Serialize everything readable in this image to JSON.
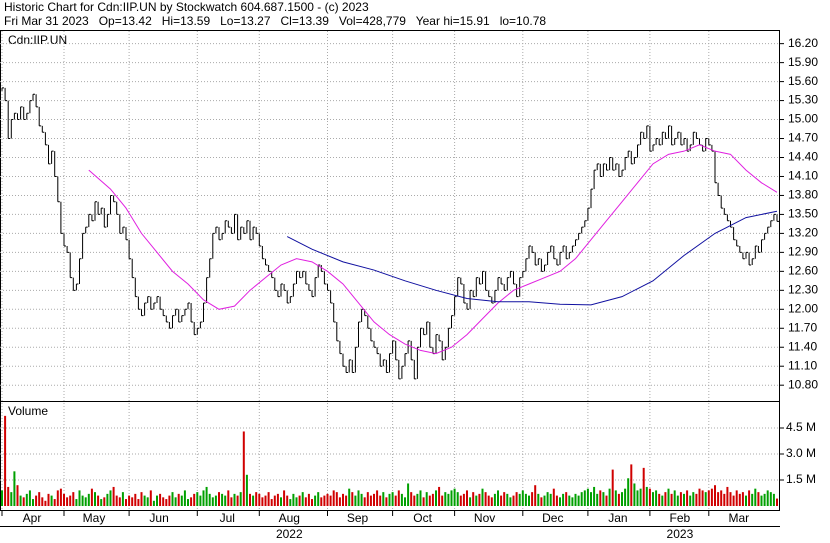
{
  "header": {
    "title": "Historic Chart for Cdn:IIP.UN by Stockwatch 604.687.1500 - (c) 2023",
    "summary": "Fri Mar 31 2023   Op=13.42   Hi=13.59   Lo=13.27   Cl=13.39   Vol=428,779   Year hi=15.91   lo=10.78"
  },
  "chart_data": [
    {
      "type": "ohlc",
      "label": "Cdn:IIP.UN",
      "close": [
        15.5,
        15.3,
        14.7,
        15.0,
        15.1,
        15.0,
        15.2,
        15.0,
        15.1,
        15.3,
        15.4,
        15.2,
        14.9,
        14.8,
        14.6,
        14.3,
        14.5,
        14.1,
        13.7,
        13.2,
        13.0,
        12.9,
        12.5,
        12.3,
        12.4,
        12.8,
        13.2,
        13.3,
        13.5,
        13.4,
        13.7,
        13.5,
        13.6,
        13.3,
        13.5,
        13.8,
        13.7,
        13.5,
        13.2,
        13.3,
        13.1,
        12.8,
        12.5,
        12.2,
        12.0,
        11.9,
        12.1,
        12.2,
        12.0,
        12.1,
        12.2,
        12.0,
        11.9,
        11.8,
        11.7,
        11.9,
        12.0,
        11.8,
        11.9,
        12.0,
        12.1,
        11.8,
        11.6,
        11.7,
        11.8,
        12.1,
        12.5,
        12.8,
        13.2,
        13.3,
        13.1,
        13.2,
        13.4,
        13.3,
        13.2,
        13.5,
        13.1,
        13.3,
        13.2,
        13.4,
        13.1,
        13.3,
        13.2,
        13.0,
        12.8,
        12.7,
        12.6,
        12.5,
        12.3,
        12.2,
        12.4,
        12.3,
        12.1,
        12.2,
        12.4,
        12.6,
        12.5,
        12.6,
        12.4,
        12.3,
        12.2,
        12.5,
        12.7,
        12.6,
        12.4,
        12.3,
        12.1,
        11.8,
        11.5,
        11.3,
        11.1,
        11.0,
        11.2,
        11.0,
        11.4,
        11.8,
        12.0,
        11.9,
        11.7,
        11.5,
        11.4,
        11.3,
        11.1,
        11.2,
        11.0,
        11.3,
        11.5,
        11.2,
        10.9,
        11.1,
        11.3,
        11.5,
        11.2,
        10.9,
        11.4,
        11.7,
        11.6,
        11.8,
        11.4,
        11.3,
        11.6,
        11.5,
        11.2,
        11.4,
        11.7,
        11.9,
        12.2,
        12.5,
        12.4,
        12.1,
        12.0,
        12.3,
        12.2,
        12.5,
        12.4,
        12.6,
        12.3,
        12.2,
        12.1,
        12.3,
        12.5,
        12.4,
        12.3,
        12.5,
        12.6,
        12.4,
        12.2,
        12.5,
        12.6,
        12.8,
        13.0,
        12.9,
        12.7,
        12.8,
        12.6,
        12.7,
        12.9,
        13.0,
        12.8,
        12.7,
        12.9,
        13.0,
        12.8,
        12.9,
        13.0,
        13.1,
        13.2,
        13.3,
        13.4,
        13.6,
        13.9,
        14.2,
        14.3,
        14.1,
        14.3,
        14.2,
        14.4,
        14.2,
        14.3,
        14.1,
        14.2,
        14.4,
        14.5,
        14.3,
        14.4,
        14.6,
        14.8,
        14.7,
        14.9,
        14.5,
        14.6,
        14.7,
        14.6,
        14.8,
        14.7,
        14.9,
        14.6,
        14.7,
        14.8,
        14.6,
        14.7,
        14.5,
        14.6,
        14.8,
        14.7,
        14.6,
        14.5,
        14.7,
        14.6,
        14.5,
        14.0,
        13.8,
        13.6,
        13.5,
        13.4,
        13.3,
        13.1,
        13.0,
        12.9,
        12.8,
        12.9,
        12.7,
        12.8,
        13.0,
        12.9,
        13.1,
        13.2,
        13.3,
        13.4,
        13.5,
        13.39
      ],
      "averages": [
        {
          "color": "#e020e0",
          "x": [
            28,
            35,
            40,
            45,
            50,
            55,
            60,
            65,
            70,
            75,
            80,
            85,
            90,
            95,
            100,
            105,
            110,
            115,
            120,
            125,
            130,
            135,
            140,
            145,
            150,
            155,
            160,
            165,
            170,
            175,
            180,
            185,
            190,
            195,
            200,
            205,
            210,
            215,
            220,
            225,
            230,
            235,
            240,
            245,
            250
          ],
          "values": [
            14.2,
            13.9,
            13.6,
            13.2,
            12.9,
            12.6,
            12.4,
            12.15,
            12.0,
            12.05,
            12.3,
            12.5,
            12.7,
            12.8,
            12.75,
            12.6,
            12.4,
            12.1,
            11.8,
            11.6,
            11.45,
            11.35,
            11.3,
            11.4,
            11.6,
            11.85,
            12.1,
            12.3,
            12.4,
            12.5,
            12.6,
            12.8,
            13.1,
            13.4,
            13.7,
            14.0,
            14.3,
            14.45,
            14.5,
            14.6,
            14.5,
            14.45,
            14.2,
            14.0,
            13.85
          ]
        },
        {
          "color": "#1010a0",
          "x": [
            92,
            100,
            110,
            120,
            130,
            140,
            150,
            160,
            170,
            180,
            190,
            200,
            210,
            220,
            230,
            240,
            250
          ],
          "values": [
            13.15,
            12.95,
            12.75,
            12.62,
            12.45,
            12.3,
            12.17,
            12.12,
            12.12,
            12.08,
            12.07,
            12.2,
            12.45,
            12.85,
            13.2,
            13.45,
            13.55
          ]
        }
      ],
      "ylim": [
        10.55,
        16.4
      ],
      "yticks": [
        {
          "value": 10.8,
          "label": "10.80"
        },
        {
          "value": 11.1,
          "label": "11.10"
        },
        {
          "value": 11.4,
          "label": "11.40"
        },
        {
          "value": 11.7,
          "label": "11.70"
        },
        {
          "value": 12.0,
          "label": "12.00"
        },
        {
          "value": 12.3,
          "label": "12.30"
        },
        {
          "value": 12.6,
          "label": "12.60"
        },
        {
          "value": 12.9,
          "label": "12.90"
        },
        {
          "value": 13.2,
          "label": "13.20"
        },
        {
          "value": 13.5,
          "label": "13.50"
        },
        {
          "value": 13.8,
          "label": "13.80"
        },
        {
          "value": 14.1,
          "label": "14.10"
        },
        {
          "value": 14.4,
          "label": "14.40"
        },
        {
          "value": 14.7,
          "label": "14.70"
        },
        {
          "value": 15.0,
          "label": "15.00"
        },
        {
          "value": 15.3,
          "label": "15.30"
        },
        {
          "value": 15.6,
          "label": "15.60"
        },
        {
          "value": 15.9,
          "label": "15.90"
        },
        {
          "value": 16.2,
          "label": "16.20"
        }
      ],
      "grid": true
    },
    {
      "type": "volume",
      "label": "Volume",
      "values": [
        0.9,
        5.2,
        1.1,
        0.8,
        2.0,
        1.2,
        0.6,
        0.5,
        0.7,
        0.9,
        0.4,
        0.6,
        0.8,
        0.5,
        0.3,
        0.7,
        0.6,
        0.4,
        0.9,
        1.0,
        0.7,
        0.5,
        0.6,
        0.8,
        0.4,
        0.9,
        0.6,
        0.5,
        0.7,
        1.0,
        0.8,
        0.6,
        0.4,
        0.5,
        0.7,
        0.9,
        1.1,
        0.6,
        0.5,
        0.8,
        0.4,
        0.6,
        0.5,
        0.7,
        0.4,
        0.8,
        0.6,
        0.5,
        0.9,
        0.3,
        0.6,
        0.7,
        0.5,
        0.4,
        0.6,
        0.8,
        0.5,
        0.7,
        0.6,
        0.9,
        0.4,
        0.5,
        0.7,
        0.8,
        0.6,
        0.9,
        1.1,
        0.7,
        0.5,
        0.6,
        0.8,
        0.7,
        0.6,
        0.9,
        0.5,
        0.7,
        0.6,
        0.8,
        4.3,
        1.8,
        0.7,
        0.6,
        0.8,
        0.7,
        0.5,
        0.6,
        0.8,
        0.4,
        0.6,
        0.7,
        0.5,
        0.9,
        0.6,
        0.4,
        0.7,
        0.5,
        0.6,
        0.8,
        0.5,
        0.7,
        0.4,
        0.6,
        0.8,
        0.5,
        0.6,
        0.7,
        0.6,
        0.9,
        0.8,
        0.5,
        0.7,
        0.6,
        1.0,
        0.8,
        0.6,
        0.9,
        0.7,
        0.5,
        0.8,
        0.6,
        0.7,
        0.9,
        0.6,
        0.8,
        0.5,
        0.7,
        0.8,
        0.6,
        0.9,
        0.7,
        0.5,
        1.3,
        0.8,
        0.6,
        0.7,
        0.9,
        0.5,
        0.8,
        0.6,
        0.7,
        0.9,
        1.1,
        0.6,
        0.8,
        0.7,
        0.9,
        1.0,
        0.8,
        0.6,
        0.7,
        0.9,
        0.5,
        0.8,
        0.6,
        0.7,
        1.0,
        0.8,
        0.6,
        0.5,
        0.7,
        0.9,
        0.6,
        0.8,
        0.7,
        0.5,
        0.6,
        0.8,
        0.7,
        0.9,
        0.7,
        0.6,
        0.8,
        1.2,
        0.7,
        0.5,
        0.6,
        0.8,
        0.7,
        1.0,
        0.6,
        0.5,
        0.7,
        0.8,
        0.6,
        0.5,
        0.7,
        0.6,
        0.8,
        0.9,
        1.0,
        0.8,
        1.1,
        0.7,
        0.9,
        0.8,
        0.6,
        1.0,
        2.1,
        0.9,
        0.7,
        0.8,
        1.0,
        1.6,
        2.4,
        1.3,
        0.9,
        1.0,
        2.2,
        1.1,
        1.0,
        0.8,
        0.9,
        0.7,
        0.6,
        0.8,
        1.0,
        0.7,
        0.9,
        0.6,
        0.8,
        0.7,
        0.9,
        0.6,
        0.8,
        0.7,
        1.0,
        0.9,
        0.8,
        0.9,
        1.0,
        1.2,
        0.8,
        0.9,
        0.7,
        1.1,
        0.8,
        0.6,
        0.9,
        0.7,
        0.8,
        0.6,
        0.9,
        0.7,
        1.0,
        0.8,
        0.6,
        0.7,
        0.9,
        0.8,
        0.7,
        0.43
      ],
      "ylim": [
        0,
        5.9
      ],
      "yticks": [
        {
          "value": 1.5,
          "label": "1.5 M"
        },
        {
          "value": 3.0,
          "label": "3.0 M"
        },
        {
          "value": 4.5,
          "label": "4.5 M"
        }
      ],
      "xticks": [
        {
          "value": 0,
          "label": "Apr"
        },
        {
          "value": 20,
          "label": "May"
        },
        {
          "value": 41,
          "label": "Jun"
        },
        {
          "value": 63,
          "label": "Jul"
        },
        {
          "value": 83,
          "label": "Aug"
        },
        {
          "value": 105,
          "label": "Sep"
        },
        {
          "value": 126,
          "label": "Oct"
        },
        {
          "value": 146,
          "label": "Nov"
        },
        {
          "value": 168,
          "label": "Dec"
        },
        {
          "value": 189,
          "label": "Jan"
        },
        {
          "value": 209,
          "label": "Feb"
        },
        {
          "value": 228,
          "label": "Mar"
        }
      ],
      "years": [
        {
          "value": 83,
          "label": "2022"
        },
        {
          "value": 209,
          "label": "2023"
        }
      ]
    }
  ]
}
